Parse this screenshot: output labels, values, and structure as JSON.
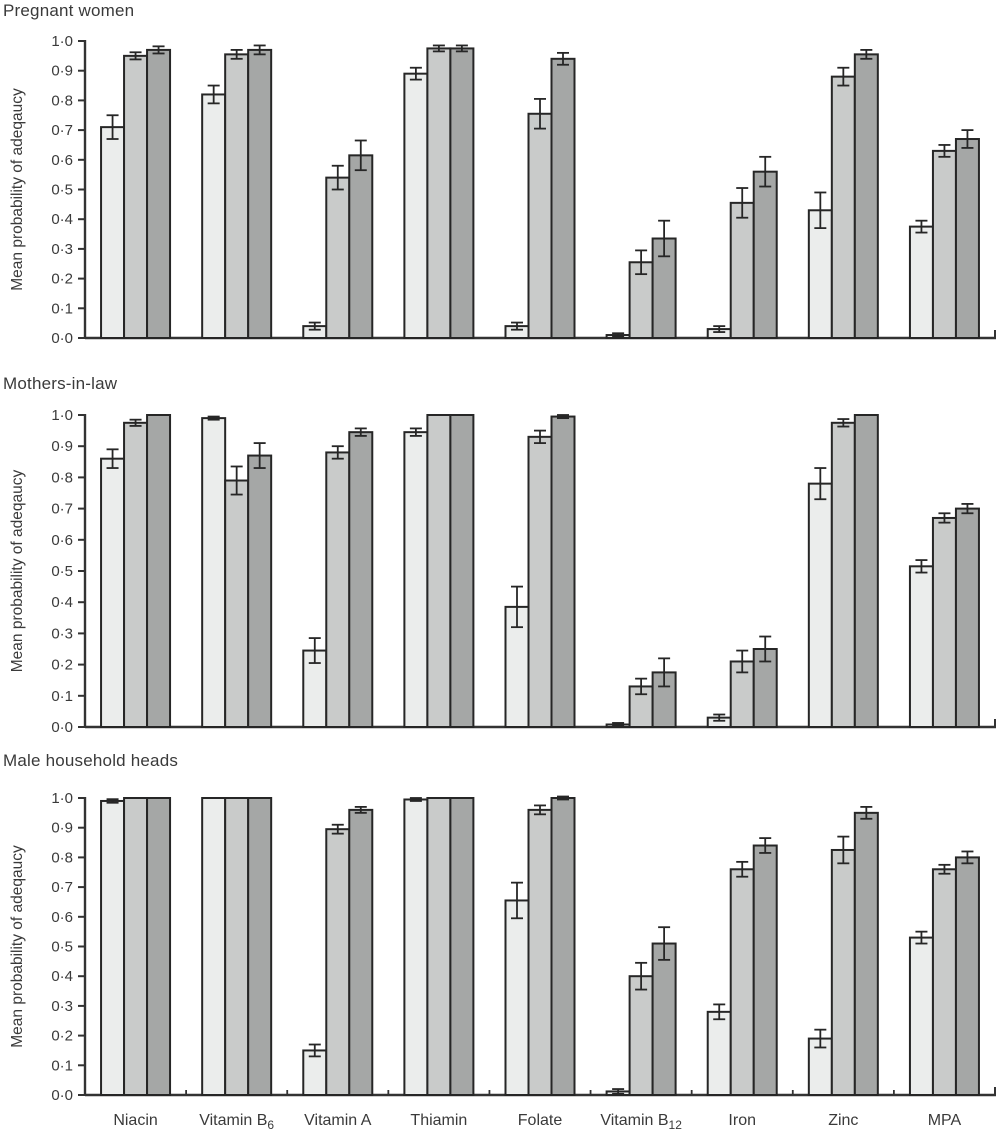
{
  "figure": {
    "y_axis_label": "Mean probability of adeqaucy",
    "y_tick_labels": [
      "0·0",
      "0·1",
      "0·2",
      "0·3",
      "0·4",
      "0·5",
      "0·6",
      "0·7",
      "0·8",
      "0·9",
      "1·0"
    ],
    "category_display": [
      {
        "text": "Niacin",
        "sub": ""
      },
      {
        "text": "Vitamin B",
        "sub": "6"
      },
      {
        "text": "Vitamin A",
        "sub": ""
      },
      {
        "text": "Thiamin",
        "sub": ""
      },
      {
        "text": "Folate",
        "sub": ""
      },
      {
        "text": "Vitamin B",
        "sub": "12"
      },
      {
        "text": "Iron",
        "sub": ""
      },
      {
        "text": "Zinc",
        "sub": ""
      },
      {
        "text": "MPA",
        "sub": ""
      }
    ],
    "colors": {
      "series_fills": [
        "#ebedec",
        "#c9cbca",
        "#a5a7a6"
      ],
      "bar_stroke": "#262626",
      "axis": "#333333",
      "text": "#3a3a3a"
    }
  },
  "chart_data": [
    {
      "type": "bar",
      "title": "Pregnant women",
      "ylabel": "Mean probability of adeqaucy",
      "ylim": [
        0.0,
        1.0
      ],
      "y_tick_step": 0.1,
      "grid": false,
      "legend": "none",
      "categories": [
        "Niacin",
        "Vitamin B6",
        "Vitamin A",
        "Thiamin",
        "Folate",
        "Vitamin B12",
        "Iron",
        "Zinc",
        "MPA"
      ],
      "series": [
        {
          "name": "light-grey",
          "values": [
            0.71,
            0.82,
            0.04,
            0.89,
            0.04,
            0.01,
            0.03,
            0.43,
            0.375
          ],
          "errors": [
            0.04,
            0.03,
            0.012,
            0.02,
            0.012,
            0.006,
            0.01,
            0.06,
            0.02
          ]
        },
        {
          "name": "mid-grey",
          "values": [
            0.95,
            0.955,
            0.54,
            0.975,
            0.755,
            0.255,
            0.455,
            0.88,
            0.63
          ],
          "errors": [
            0.012,
            0.015,
            0.04,
            0.01,
            0.05,
            0.04,
            0.05,
            0.03,
            0.02
          ]
        },
        {
          "name": "dark-grey",
          "values": [
            0.97,
            0.97,
            0.615,
            0.975,
            0.94,
            0.335,
            0.56,
            0.955,
            0.67
          ],
          "errors": [
            0.012,
            0.015,
            0.05,
            0.01,
            0.02,
            0.06,
            0.05,
            0.015,
            0.03
          ]
        }
      ]
    },
    {
      "type": "bar",
      "title": "Mothers-in-law",
      "ylabel": "Mean probability of adeqaucy",
      "ylim": [
        0.0,
        1.0
      ],
      "y_tick_step": 0.1,
      "grid": false,
      "legend": "none",
      "categories": [
        "Niacin",
        "Vitamin B6",
        "Vitamin A",
        "Thiamin",
        "Folate",
        "Vitamin B12",
        "Iron",
        "Zinc",
        "MPA"
      ],
      "series": [
        {
          "name": "light-grey",
          "values": [
            0.86,
            0.99,
            0.245,
            0.945,
            0.385,
            0.008,
            0.03,
            0.78,
            0.515
          ],
          "errors": [
            0.03,
            0.005,
            0.04,
            0.012,
            0.065,
            0.005,
            0.01,
            0.05,
            0.02
          ]
        },
        {
          "name": "mid-grey",
          "values": [
            0.975,
            0.79,
            0.88,
            1.0,
            0.93,
            0.13,
            0.21,
            0.975,
            0.67
          ],
          "errors": [
            0.01,
            0.045,
            0.02,
            0.0,
            0.02,
            0.025,
            0.035,
            0.012,
            0.015
          ]
        },
        {
          "name": "dark-grey",
          "values": [
            1.0,
            0.87,
            0.945,
            1.0,
            0.995,
            0.175,
            0.25,
            1.0,
            0.7
          ],
          "errors": [
            0.0,
            0.04,
            0.012,
            0.0,
            0.005,
            0.045,
            0.04,
            0.0,
            0.015
          ]
        }
      ]
    },
    {
      "type": "bar",
      "title": "Male household heads",
      "ylabel": "Mean probability of adeqaucy",
      "ylim": [
        0.0,
        1.0
      ],
      "y_tick_step": 0.1,
      "grid": false,
      "legend": "none",
      "categories": [
        "Niacin",
        "Vitamin B6",
        "Vitamin A",
        "Thiamin",
        "Folate",
        "Vitamin B12",
        "Iron",
        "Zinc",
        "MPA"
      ],
      "series": [
        {
          "name": "light-grey",
          "values": [
            0.99,
            1.0,
            0.15,
            0.995,
            0.655,
            0.012,
            0.28,
            0.19,
            0.53
          ],
          "errors": [
            0.006,
            0.0,
            0.02,
            0.005,
            0.06,
            0.008,
            0.025,
            0.03,
            0.02
          ]
        },
        {
          "name": "mid-grey",
          "values": [
            1.0,
            1.0,
            0.895,
            1.0,
            0.96,
            0.4,
            0.76,
            0.825,
            0.76
          ],
          "errors": [
            0.0,
            0.0,
            0.015,
            0.0,
            0.015,
            0.045,
            0.025,
            0.045,
            0.015
          ]
        },
        {
          "name": "dark-grey",
          "values": [
            1.0,
            1.0,
            0.96,
            1.0,
            1.0,
            0.51,
            0.84,
            0.95,
            0.8
          ],
          "errors": [
            0.0,
            0.0,
            0.01,
            0.0,
            0.005,
            0.055,
            0.025,
            0.02,
            0.02
          ]
        }
      ]
    }
  ]
}
